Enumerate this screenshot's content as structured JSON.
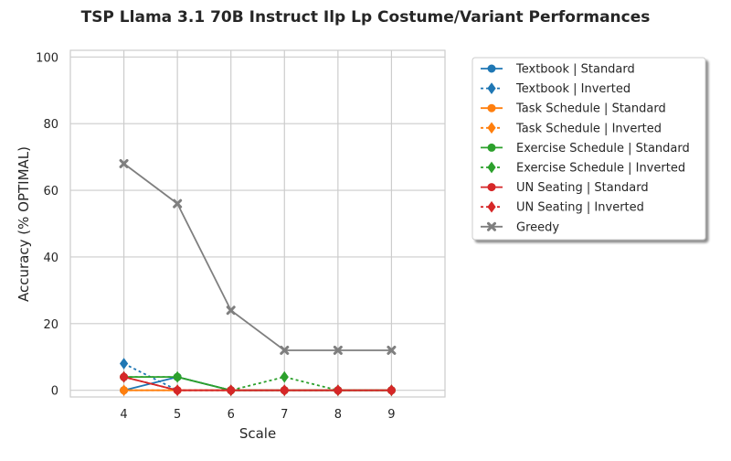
{
  "chart_data": {
    "type": "line",
    "title": "TSP Llama 3.1 70B Instruct Ilp Lp Costume/Variant Performances",
    "xlabel": "Scale",
    "ylabel": "Accuracy (% OPTIMAL)",
    "x": [
      4,
      5,
      6,
      7,
      8,
      9
    ],
    "xticks": [
      "4",
      "5",
      "6",
      "7",
      "8",
      "9"
    ],
    "xlim": [
      3,
      10
    ],
    "ylim": [
      -2,
      102
    ],
    "yticks": [
      0,
      20,
      40,
      60,
      80,
      100
    ],
    "ytick_labels": [
      "0",
      "20",
      "40",
      "60",
      "80",
      "100"
    ],
    "grid": true,
    "legend_position": "outside upper right",
    "series": [
      {
        "name": "Textbook | Standard",
        "color": "#1f77b4",
        "dash": "solid",
        "marker": "circle",
        "values": [
          0,
          4,
          0,
          0,
          0,
          0
        ]
      },
      {
        "name": "Textbook | Inverted",
        "color": "#1f77b4",
        "dash": "dotted",
        "marker": "diamond",
        "values": [
          8,
          0,
          0,
          0,
          0,
          0
        ]
      },
      {
        "name": "Task Schedule | Standard",
        "color": "#ff7f0e",
        "dash": "solid",
        "marker": "circle",
        "values": [
          0,
          0,
          0,
          0,
          0,
          0
        ]
      },
      {
        "name": "Task Schedule | Inverted",
        "color": "#ff7f0e",
        "dash": "dotted",
        "marker": "diamond",
        "values": [
          0,
          0,
          0,
          0,
          0,
          0
        ]
      },
      {
        "name": "Exercise Schedule | Standard",
        "color": "#2ca02c",
        "dash": "solid",
        "marker": "circle",
        "values": [
          4,
          4,
          0,
          0,
          0,
          0
        ]
      },
      {
        "name": "Exercise Schedule | Inverted",
        "color": "#2ca02c",
        "dash": "dotted",
        "marker": "diamond",
        "values": [
          4,
          4,
          0,
          4,
          0,
          0
        ]
      },
      {
        "name": "UN Seating | Standard",
        "color": "#d62728",
        "dash": "solid",
        "marker": "circle",
        "values": [
          4,
          0,
          0,
          0,
          0,
          0
        ]
      },
      {
        "name": "UN Seating | Inverted",
        "color": "#d62728",
        "dash": "dotted",
        "marker": "diamond",
        "values": [
          4,
          0,
          0,
          0,
          0,
          0
        ]
      },
      {
        "name": "Greedy",
        "color": "#7f7f7f",
        "dash": "solid",
        "marker": "x",
        "values": [
          68,
          56,
          24,
          12,
          12,
          12
        ]
      }
    ]
  }
}
